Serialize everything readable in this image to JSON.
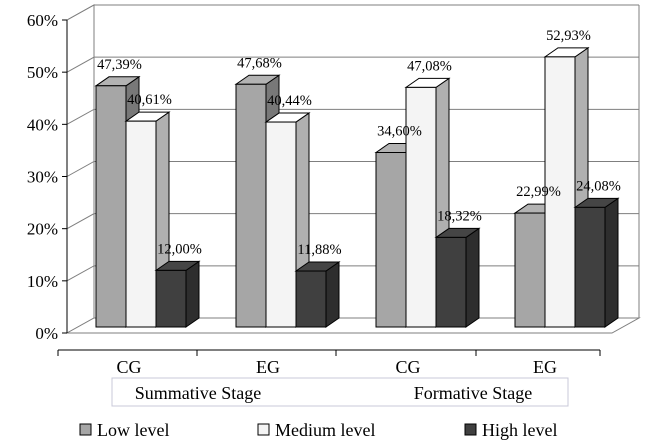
{
  "chart_data": {
    "type": "bar",
    "title": "",
    "xlabel": "",
    "ylabel": "",
    "ylim": [
      0,
      60
    ],
    "yticks": [
      0,
      10,
      20,
      30,
      40,
      50,
      60
    ],
    "ytick_labels": [
      "0%",
      "10%",
      "20%",
      "30%",
      "40%",
      "50%",
      "60%"
    ],
    "categories": [
      "CG",
      "EG",
      "CG",
      "EG"
    ],
    "groups": [
      {
        "label": "Summative Stage",
        "categories": [
          0,
          1
        ]
      },
      {
        "label": "Formative Stage",
        "categories": [
          2,
          3
        ]
      }
    ],
    "series": [
      {
        "name": "Low level",
        "values": [
          47.39,
          47.68,
          34.6,
          22.99
        ],
        "labels": [
          "47,39%",
          "47,68%",
          "34,60%",
          "22,99%"
        ]
      },
      {
        "name": "Medium level",
        "values": [
          40.61,
          40.44,
          47.08,
          52.93
        ],
        "labels": [
          "40,61%",
          "40,44%",
          "47,08%",
          "52,93%"
        ]
      },
      {
        "name": "High level",
        "values": [
          12.0,
          11.88,
          18.32,
          24.08
        ],
        "labels": [
          "12,00%",
          "11,88%",
          "18,32%",
          "24,08%"
        ]
      }
    ],
    "legend_position": "bottom",
    "grid": true,
    "style": "3d-clustered-column",
    "colors": {
      "Low level": "#a6a6a6",
      "Medium level": "#f4f4f4",
      "High level": "#404040"
    }
  }
}
